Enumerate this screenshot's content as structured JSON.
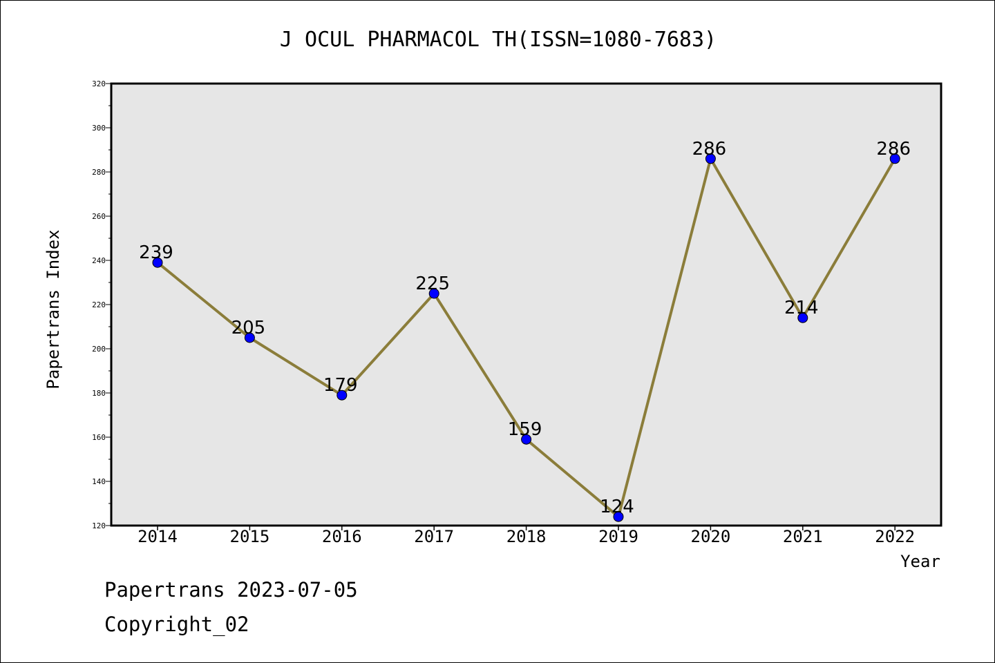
{
  "chart_data": {
    "type": "line",
    "title": "J OCUL PHARMACOL TH(ISSN=1080-7683)",
    "xlabel": "Year",
    "ylabel": "Papertrans Index",
    "categories": [
      "2014",
      "2015",
      "2016",
      "2017",
      "2018",
      "2019",
      "2020",
      "2021",
      "2022"
    ],
    "values": [
      239,
      205,
      179,
      225,
      159,
      124,
      286,
      214,
      286
    ],
    "data_labels": [
      "239",
      "205",
      "179",
      "225",
      "159",
      "124",
      "286",
      "214",
      "286"
    ],
    "ylim": [
      120,
      320
    ],
    "yticks": [
      120,
      140,
      160,
      180,
      200,
      220,
      240,
      260,
      280,
      300,
      320
    ],
    "ytick_labels": [
      "120",
      "140",
      "160",
      "180",
      "200",
      "220",
      "240",
      "260",
      "280",
      "300",
      "320"
    ],
    "grid": false,
    "colors": {
      "line": "#8b7d3a",
      "marker": "#0000ff",
      "plot_background": "#e6e6e6"
    }
  },
  "footer": {
    "date_text": "Papertrans 2023-07-05",
    "copyright_text": "Copyright_02"
  }
}
